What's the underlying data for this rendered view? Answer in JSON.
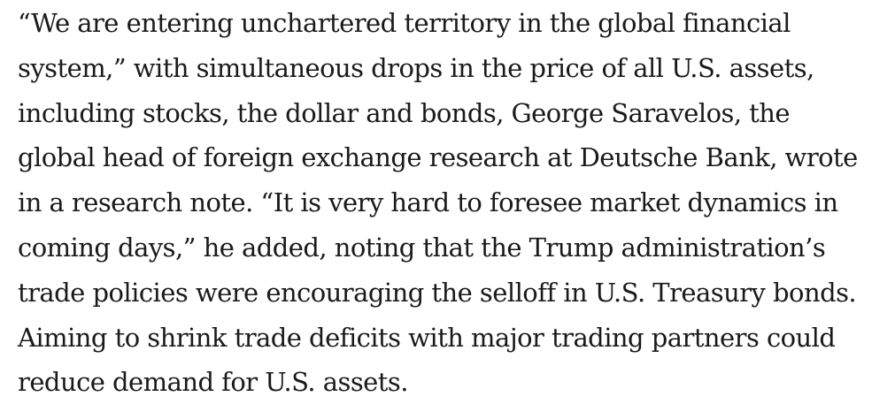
{
  "article": {
    "paragraph_lines": [
      "“We are entering unchartered territory in the global financial",
      "system,” with simultaneous drops in the price of all U.S. assets,",
      "including stocks, the dollar and bonds, George Saravelos, the",
      "global head of foreign exchange research at Deutsche Bank, wrote",
      "in a research note. “It is very hard to foresee market dynamics in",
      "coming days,” he added, noting that the Trump administration’s",
      "trade policies were encouraging the selloff in U.S. Treasury bonds.",
      "Aiming to shrink trade deficits with major trading partners could",
      "reduce demand for U.S. assets."
    ],
    "text_color": "#1a1a1a",
    "background_color": "#ffffff"
  }
}
